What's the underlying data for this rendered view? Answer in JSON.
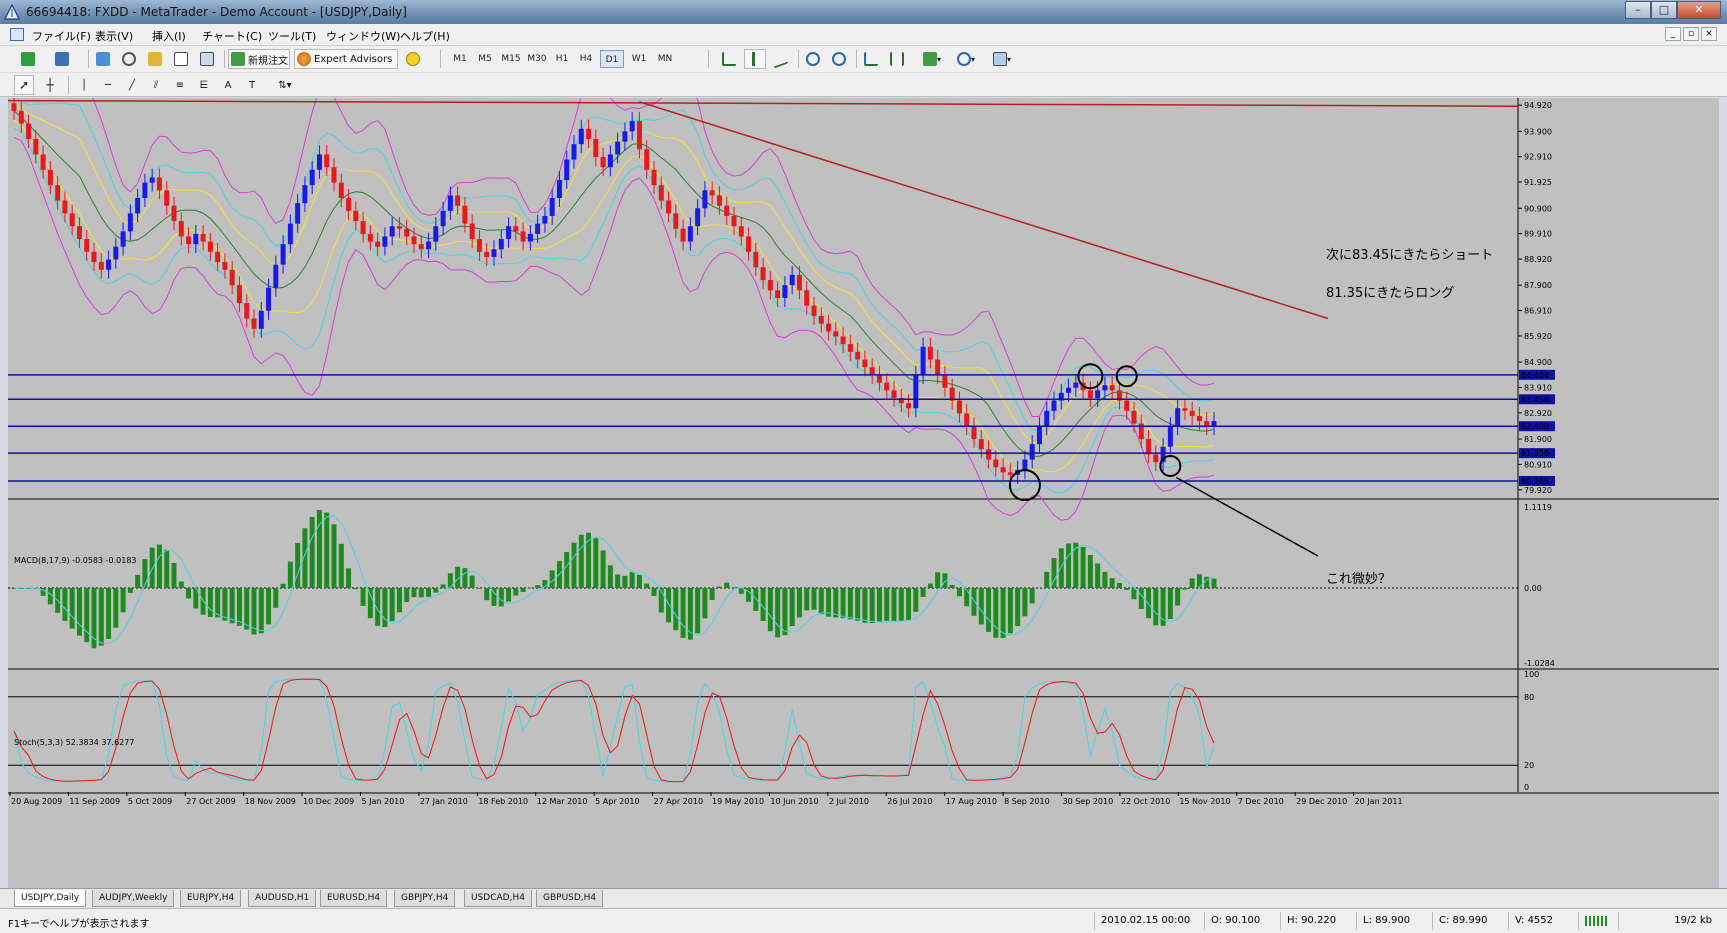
{
  "window": {
    "title": "66694418: FXDD - MetaTrader - Demo Account - [USDJPY,Daily]",
    "buttons": [
      "–",
      "□",
      "✕"
    ]
  },
  "menu": {
    "items": [
      "ファイル(F)",
      "表示(V)",
      "挿入(I)",
      "チャート(C)",
      "ツール(T)",
      "ウィンドウ(W)",
      "ヘルプ(H)"
    ],
    "mdi_buttons": [
      "_",
      "▫",
      "×"
    ]
  },
  "toolbar": {
    "new_order_label": "新規注文",
    "expert_advisors_label": "Expert Advisors",
    "timeframes": [
      "M1",
      "M5",
      "M15",
      "M30",
      "H1",
      "H4",
      "D1",
      "W1",
      "MN"
    ],
    "active_timeframe": "D1"
  },
  "annotations": {
    "short_note": "次に83.45にきたらショート",
    "long_note": "81.35にきたらロング",
    "question_note": "これ微妙？"
  },
  "indicators": {
    "macd_label": "MACD(8,17,9) -0.0583 -0.0183",
    "stoch_label": "Stoch(5,3,3) 52.3834 37.6277",
    "macd_scale": [
      "1.1119",
      "0.00",
      "-1.0284"
    ],
    "stoch_scale": [
      "100",
      "80",
      "20",
      "0"
    ]
  },
  "chart_data": {
    "type": "candlestick",
    "symbol": "USDJPY",
    "timeframe": "Daily",
    "price_axis": [
      "94.920",
      "93.900",
      "92.910",
      "91.925",
      "90.900",
      "89.910",
      "88.920",
      "87.900",
      "86.910",
      "85.920",
      "84.900",
      "83.910",
      "82.920",
      "81.900",
      "80.910",
      "79.920"
    ],
    "horizontal_levels": [
      {
        "price": 84.404,
        "label": "84.404"
      },
      {
        "price": 83.45,
        "label": "83.450"
      },
      {
        "price": 82.4,
        "label": "82.400"
      },
      {
        "price": 81.35,
        "label": "81.350"
      },
      {
        "price": 80.265,
        "label": "80.265"
      }
    ],
    "x_axis_dates": [
      "20 Aug 2009",
      "11 Sep 2009",
      "5 Oct 2009",
      "27 Oct 2009",
      "18 Nov 2009",
      "10 Dec 2009",
      "5 Jan 2010",
      "27 Jan 2010",
      "18 Feb 2010",
      "12 Mar 2010",
      "5 Apr 2010",
      "27 Apr 2010",
      "19 May 2010",
      "10 Jun 2010",
      "2 Jul 2010",
      "26 Jul 2010",
      "17 Aug 2010",
      "8 Sep 2010",
      "30 Sep 2010",
      "22 Oct 2010",
      "15 Nov 2010",
      "7 Dec 2010",
      "29 Dec 2010",
      "20 Jan 2011"
    ],
    "approx_close": [
      94.7,
      94.2,
      93.6,
      93.0,
      92.4,
      91.8,
      91.2,
      90.7,
      90.2,
      89.7,
      89.2,
      88.8,
      88.5,
      88.9,
      89.4,
      90.0,
      90.7,
      91.3,
      91.9,
      92.1,
      91.6,
      91.0,
      90.4,
      89.8,
      89.5,
      89.9,
      89.6,
      89.2,
      88.8,
      88.5,
      87.9,
      87.2,
      86.6,
      86.2,
      86.9,
      87.8,
      88.7,
      89.5,
      90.3,
      91.1,
      91.8,
      92.4,
      93.0,
      92.5,
      91.9,
      91.3,
      90.8,
      90.4,
      89.9,
      89.6,
      89.4,
      89.8,
      90.2,
      90.1,
      89.8,
      89.5,
      89.3,
      89.6,
      90.2,
      90.8,
      91.4,
      91.0,
      90.3,
      89.7,
      89.2,
      89.0,
      89.3,
      89.7,
      90.2,
      90.0,
      89.6,
      89.9,
      90.3,
      90.6,
      91.3,
      92.0,
      92.8,
      93.4,
      94.0,
      93.6,
      92.9,
      92.5,
      93.0,
      93.5,
      93.9,
      94.3,
      93.2,
      92.4,
      91.8,
      91.2,
      90.7,
      90.1,
      89.6,
      90.2,
      90.9,
      91.6,
      91.4,
      91.0,
      90.6,
      90.2,
      89.8,
      89.2,
      88.6,
      88.1,
      87.7,
      87.4,
      87.9,
      88.3,
      87.7,
      87.1,
      86.7,
      86.4,
      86.1,
      85.9,
      85.6,
      85.3,
      85.0,
      84.7,
      84.4,
      84.1,
      83.8,
      83.5,
      83.3,
      83.1,
      84.4,
      85.5,
      85.0,
      84.4,
      83.9,
      83.4,
      82.9,
      82.4,
      81.9,
      81.5,
      81.1,
      80.8,
      80.6,
      80.5,
      80.7,
      81.1,
      81.7,
      82.4,
      83.0,
      83.4,
      83.7,
      83.9,
      84.1,
      83.8,
      83.5,
      83.8,
      84.0,
      83.8,
      83.4,
      83.0,
      82.5,
      81.9,
      81.3,
      81.0,
      81.6,
      82.4,
      83.1,
      83.0,
      82.8,
      82.6,
      82.4,
      82.6
    ]
  },
  "tabs": {
    "items": [
      "USDJPY,Daily",
      "AUDJPY,Weekly",
      "EURJPY,H4",
      "AUDUSD,H1",
      "EURUSD,H4",
      "GBPJPY,H4",
      "USDCAD,H4",
      "GBPUSD,H4"
    ],
    "active": "USDJPY,Daily"
  },
  "status": {
    "help": "F1キーでヘルプが表示されます",
    "datetime": "2010.02.15 00:00",
    "open": "O: 90.100",
    "high": "H: 90.220",
    "low": "L: 89.900",
    "close": "C: 89.990",
    "volume": "V: 4552",
    "traffic": "19/2 kb"
  }
}
